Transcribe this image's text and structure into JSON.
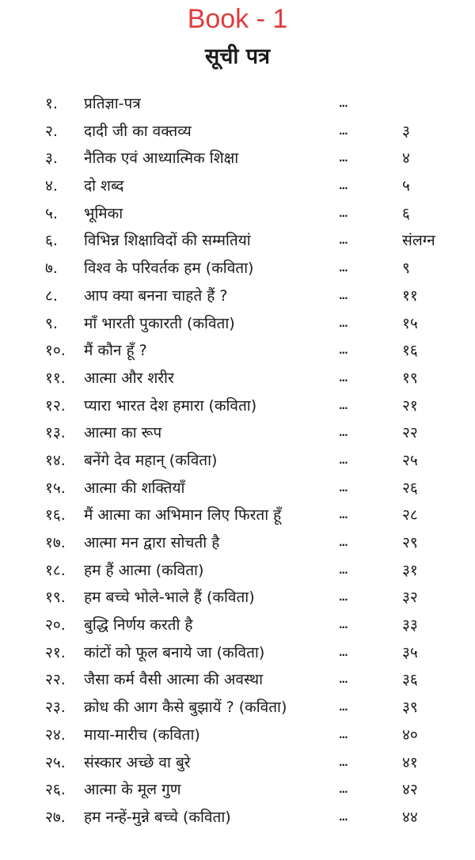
{
  "header": {
    "book_label": "Book - 1",
    "title": "सूची पत्र"
  },
  "contents": [
    {
      "num": "१.",
      "title": "प्रतिज्ञा-पत्र",
      "dots": "...",
      "page": ""
    },
    {
      "num": "२.",
      "title": "दादी जी का वक्तव्य",
      "dots": "...",
      "page": "३"
    },
    {
      "num": "३.",
      "title": "नैतिक एवं आध्यात्मिक शिक्षा",
      "dots": "...",
      "page": "४"
    },
    {
      "num": "४.",
      "title": "दो शब्द",
      "dots": "...",
      "page": "५"
    },
    {
      "num": "५.",
      "title": "भूमिका",
      "dots": "...",
      "page": "६"
    },
    {
      "num": "६.",
      "title": "विभिन्न शिक्षाविदों की सम्मतियां",
      "dots": "...",
      "page": "संलग्न"
    },
    {
      "num": "७.",
      "title": "विश्व के परिवर्तक हम (कविता)",
      "dots": "...",
      "page": "९"
    },
    {
      "num": "८.",
      "title": "आप क्या बनना चाहते हैं ?",
      "dots": "...",
      "page": "११"
    },
    {
      "num": "९.",
      "title": "माँ भारती पुकारती  (कविता)",
      "dots": "...",
      "page": "१५"
    },
    {
      "num": "१०.",
      "title": "मैं कौन हूँ ?",
      "dots": "...",
      "page": "१६"
    },
    {
      "num": "११.",
      "title": "आत्मा और शरीर",
      "dots": "...",
      "page": "१९"
    },
    {
      "num": "१२.",
      "title": "प्यारा भारत देश हमारा (कविता)",
      "dots": "...",
      "page": "२१"
    },
    {
      "num": "१३.",
      "title": "आत्मा का रूप",
      "dots": "...",
      "page": "२२"
    },
    {
      "num": "१४.",
      "title": "बनेंगे देव महान् (कविता)",
      "dots": "...",
      "page": "२५"
    },
    {
      "num": "१५.",
      "title": "आत्मा की शक्तियाँ",
      "dots": "...",
      "page": "२६"
    },
    {
      "num": "१६.",
      "title": "मैं आत्मा का अभिमान लिए फिरता हूँ",
      "dots": "...",
      "page": "२८"
    },
    {
      "num": "१७.",
      "title": "आत्मा  मन द्वारा सोचती है",
      "dots": "...",
      "page": "२९"
    },
    {
      "num": "१८.",
      "title": "हम हैं आत्मा (कविता)",
      "dots": "...",
      "page": "३१"
    },
    {
      "num": "१९.",
      "title": "हम बच्चे भोले-भाले हैं (कविता)",
      "dots": "...",
      "page": "३२"
    },
    {
      "num": "२०.",
      "title": "बुद्धि निर्णय करती है",
      "dots": "...",
      "page": "३३"
    },
    {
      "num": "२१.",
      "title": "कांटों को फूल  बनाये जा (कविता)",
      "dots": "...",
      "page": "३५"
    },
    {
      "num": "२२.",
      "title": "जैसा कर्म वैसी आत्मा की अवस्था",
      "dots": "...",
      "page": "३६"
    },
    {
      "num": "२३.",
      "title": "क्रोध की आग कैसे बुझायें ? (कविता)",
      "dots": "...",
      "page": "३९"
    },
    {
      "num": "२४.",
      "title": "माया-मारीच (कविता)",
      "dots": "...",
      "page": "४०"
    },
    {
      "num": "२५.",
      "title": "संस्कार अच्छे वा बुरे",
      "dots": "...",
      "page": "४१"
    },
    {
      "num": "२६.",
      "title": "आत्मा के मूल गुण",
      "dots": "...",
      "page": "४२"
    },
    {
      "num": "२७.",
      "title": "हम नन्हें-मुन्ने बच्चे (कविता)",
      "dots": "...",
      "page": "४४"
    }
  ]
}
